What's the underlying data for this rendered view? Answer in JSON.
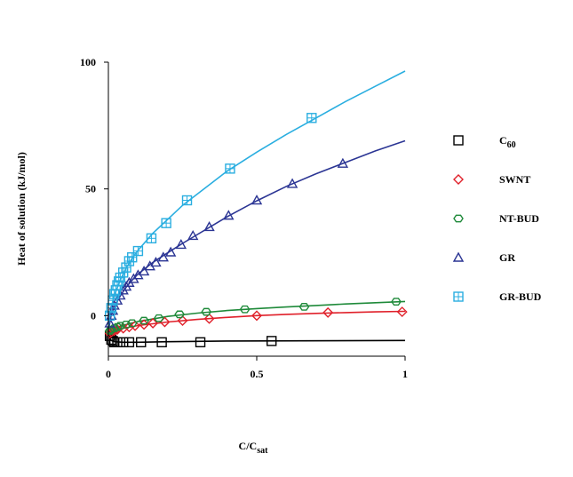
{
  "chart_data": {
    "type": "scatter",
    "ylabel": "Heat of solution (kJ/mol)",
    "xlabel": {
      "main": "C/C",
      "sub": "sat"
    },
    "xlim": [
      0,
      1
    ],
    "ylim": [
      -16,
      100
    ],
    "x_ticks": [
      {
        "value": 0,
        "label": "0"
      },
      {
        "value": 0.5,
        "label": "0.5"
      },
      {
        "value": 1,
        "label": "1"
      }
    ],
    "y_ticks": [
      {
        "value": 0,
        "label": "0"
      },
      {
        "value": 50,
        "label": "50"
      },
      {
        "value": 100,
        "label": "100"
      }
    ],
    "grid": false,
    "legend_position": "right",
    "series": [
      {
        "name": "C",
        "name_sub": "60",
        "marker": "square",
        "color": "#000000",
        "points": [
          {
            "x": 0.005,
            "y": -8
          },
          {
            "x": 0.01,
            "y": -9.5
          },
          {
            "x": 0.015,
            "y": -10
          },
          {
            "x": 0.02,
            "y": -10.5
          },
          {
            "x": 0.03,
            "y": -10.5
          },
          {
            "x": 0.05,
            "y": -10.5
          },
          {
            "x": 0.07,
            "y": -10.5
          },
          {
            "x": 0.11,
            "y": -10.5
          },
          {
            "x": 0.18,
            "y": -10.5
          },
          {
            "x": 0.31,
            "y": -10.5
          },
          {
            "x": 0.55,
            "y": -10
          }
        ],
        "curve": [
          {
            "x": 0,
            "y": -7
          },
          {
            "x": 0.005,
            "y": -9
          },
          {
            "x": 0.01,
            "y": -9.8
          },
          {
            "x": 0.02,
            "y": -10.3
          },
          {
            "x": 0.05,
            "y": -10.5
          },
          {
            "x": 0.1,
            "y": -10.5
          },
          {
            "x": 0.2,
            "y": -10.3
          },
          {
            "x": 0.4,
            "y": -10
          },
          {
            "x": 1.0,
            "y": -9.8
          }
        ]
      },
      {
        "name": "SWNT",
        "marker": "diamond",
        "color": "#e0202a",
        "points": [
          {
            "x": 0.005,
            "y": -7
          },
          {
            "x": 0.01,
            "y": -6.5
          },
          {
            "x": 0.02,
            "y": -6
          },
          {
            "x": 0.03,
            "y": -5.5
          },
          {
            "x": 0.05,
            "y": -5
          },
          {
            "x": 0.07,
            "y": -4.5
          },
          {
            "x": 0.09,
            "y": -4
          },
          {
            "x": 0.12,
            "y": -3.5
          },
          {
            "x": 0.15,
            "y": -3
          },
          {
            "x": 0.19,
            "y": -2.5
          },
          {
            "x": 0.25,
            "y": -2
          },
          {
            "x": 0.34,
            "y": -1.2
          },
          {
            "x": 0.5,
            "y": 0
          },
          {
            "x": 0.74,
            "y": 1.2
          },
          {
            "x": 0.99,
            "y": 1.5
          }
        ],
        "curve": [
          {
            "x": 0,
            "y": -9
          },
          {
            "x": 0.02,
            "y": -6.2
          },
          {
            "x": 0.05,
            "y": -5
          },
          {
            "x": 0.1,
            "y": -3.9
          },
          {
            "x": 0.2,
            "y": -2.5
          },
          {
            "x": 0.3,
            "y": -1.5
          },
          {
            "x": 0.4,
            "y": -0.7
          },
          {
            "x": 0.5,
            "y": 0
          },
          {
            "x": 0.6,
            "y": 0.5
          },
          {
            "x": 0.7,
            "y": 0.9
          },
          {
            "x": 0.8,
            "y": 1.2
          },
          {
            "x": 0.9,
            "y": 1.5
          },
          {
            "x": 1.0,
            "y": 1.7
          }
        ]
      },
      {
        "name": "NT-BUD",
        "marker": "hexagon",
        "color": "#1f8a3a",
        "points": [
          {
            "x": 0.005,
            "y": -6
          },
          {
            "x": 0.01,
            "y": -5.5
          },
          {
            "x": 0.02,
            "y": -5
          },
          {
            "x": 0.03,
            "y": -4.5
          },
          {
            "x": 0.04,
            "y": -4
          },
          {
            "x": 0.06,
            "y": -3.5
          },
          {
            "x": 0.08,
            "y": -3
          },
          {
            "x": 0.12,
            "y": -2
          },
          {
            "x": 0.17,
            "y": -1
          },
          {
            "x": 0.24,
            "y": 0.5
          },
          {
            "x": 0.33,
            "y": 1.5
          },
          {
            "x": 0.46,
            "y": 2.5
          },
          {
            "x": 0.66,
            "y": 3.5
          },
          {
            "x": 0.97,
            "y": 5.5
          }
        ],
        "curve": [
          {
            "x": 0,
            "y": -8
          },
          {
            "x": 0.02,
            "y": -5
          },
          {
            "x": 0.05,
            "y": -3.8
          },
          {
            "x": 0.1,
            "y": -2.3
          },
          {
            "x": 0.2,
            "y": -0.3
          },
          {
            "x": 0.3,
            "y": 1
          },
          {
            "x": 0.4,
            "y": 2
          },
          {
            "x": 0.5,
            "y": 2.8
          },
          {
            "x": 0.6,
            "y": 3.4
          },
          {
            "x": 0.7,
            "y": 4
          },
          {
            "x": 0.8,
            "y": 4.6
          },
          {
            "x": 0.9,
            "y": 5.1
          },
          {
            "x": 1.0,
            "y": 5.6
          }
        ]
      },
      {
        "name": "GR",
        "marker": "triangle",
        "color": "#2b3594",
        "points": [
          {
            "x": 0.005,
            "y": -3
          },
          {
            "x": 0.01,
            "y": 0
          },
          {
            "x": 0.015,
            "y": 2
          },
          {
            "x": 0.02,
            "y": 4
          },
          {
            "x": 0.03,
            "y": 6
          },
          {
            "x": 0.04,
            "y": 8
          },
          {
            "x": 0.05,
            "y": 10
          },
          {
            "x": 0.06,
            "y": 11.5
          },
          {
            "x": 0.07,
            "y": 13
          },
          {
            "x": 0.085,
            "y": 14.5
          },
          {
            "x": 0.1,
            "y": 16
          },
          {
            "x": 0.12,
            "y": 17.5
          },
          {
            "x": 0.14,
            "y": 19.5
          },
          {
            "x": 0.16,
            "y": 21
          },
          {
            "x": 0.185,
            "y": 23
          },
          {
            "x": 0.21,
            "y": 25
          },
          {
            "x": 0.245,
            "y": 28
          },
          {
            "x": 0.285,
            "y": 31.5
          },
          {
            "x": 0.34,
            "y": 35
          },
          {
            "x": 0.405,
            "y": 39.5
          },
          {
            "x": 0.5,
            "y": 45.5
          },
          {
            "x": 0.62,
            "y": 52
          },
          {
            "x": 0.79,
            "y": 60
          }
        ],
        "curve": [
          {
            "x": 0,
            "y": -6
          },
          {
            "x": 0.01,
            "y": 0.5
          },
          {
            "x": 0.02,
            "y": 3.5
          },
          {
            "x": 0.04,
            "y": 7.8
          },
          {
            "x": 0.06,
            "y": 11.2
          },
          {
            "x": 0.08,
            "y": 14
          },
          {
            "x": 0.1,
            "y": 16.4
          },
          {
            "x": 0.15,
            "y": 21
          },
          {
            "x": 0.2,
            "y": 24.8
          },
          {
            "x": 0.25,
            "y": 28.5
          },
          {
            "x": 0.3,
            "y": 32
          },
          {
            "x": 0.4,
            "y": 39
          },
          {
            "x": 0.5,
            "y": 45.3
          },
          {
            "x": 0.6,
            "y": 51
          },
          {
            "x": 0.7,
            "y": 56
          },
          {
            "x": 0.8,
            "y": 60.5
          },
          {
            "x": 0.9,
            "y": 65
          },
          {
            "x": 1.0,
            "y": 69
          }
        ]
      },
      {
        "name": "GR-BUD",
        "marker": "boxgrid",
        "color": "#2aaee0",
        "points": [
          {
            "x": 0.005,
            "y": 0
          },
          {
            "x": 0.01,
            "y": 3
          },
          {
            "x": 0.015,
            "y": 6
          },
          {
            "x": 0.02,
            "y": 8.5
          },
          {
            "x": 0.025,
            "y": 10
          },
          {
            "x": 0.03,
            "y": 12
          },
          {
            "x": 0.035,
            "y": 13.5
          },
          {
            "x": 0.04,
            "y": 15
          },
          {
            "x": 0.05,
            "y": 17
          },
          {
            "x": 0.06,
            "y": 19
          },
          {
            "x": 0.07,
            "y": 21.5
          },
          {
            "x": 0.08,
            "y": 23
          },
          {
            "x": 0.1,
            "y": 25.5
          },
          {
            "x": 0.145,
            "y": 30.5
          },
          {
            "x": 0.195,
            "y": 36.5
          },
          {
            "x": 0.265,
            "y": 45.5
          },
          {
            "x": 0.41,
            "y": 58
          },
          {
            "x": 0.685,
            "y": 78
          }
        ],
        "curve": [
          {
            "x": 0,
            "y": -4
          },
          {
            "x": 0.01,
            "y": 3.5
          },
          {
            "x": 0.02,
            "y": 8
          },
          {
            "x": 0.04,
            "y": 14
          },
          {
            "x": 0.06,
            "y": 18.8
          },
          {
            "x": 0.08,
            "y": 22.6
          },
          {
            "x": 0.1,
            "y": 25.8
          },
          {
            "x": 0.15,
            "y": 32.5
          },
          {
            "x": 0.2,
            "y": 38
          },
          {
            "x": 0.25,
            "y": 43.5
          },
          {
            "x": 0.3,
            "y": 48
          },
          {
            "x": 0.4,
            "y": 57
          },
          {
            "x": 0.5,
            "y": 64.5
          },
          {
            "x": 0.6,
            "y": 71.5
          },
          {
            "x": 0.7,
            "y": 78
          },
          {
            "x": 0.8,
            "y": 84.5
          },
          {
            "x": 0.9,
            "y": 90.5
          },
          {
            "x": 1.0,
            "y": 96.5
          }
        ]
      }
    ]
  }
}
